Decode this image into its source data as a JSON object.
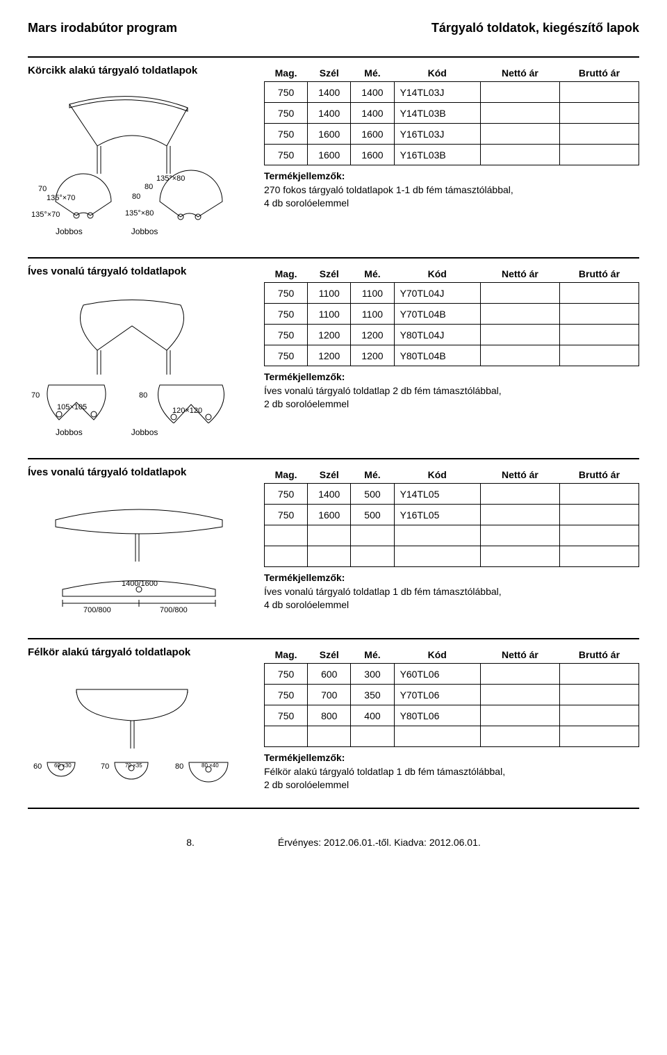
{
  "header": {
    "left": "Mars irodabútor program",
    "right": "Tárgyaló toldatok, kiegészítő lapok"
  },
  "columns": {
    "mag": "Mag.",
    "szel": "Szél",
    "me": "Mé.",
    "kod": "Kód",
    "netto": "Nettó ár",
    "brutto": "Bruttó ár"
  },
  "col_widths": {
    "mag": 60,
    "szel": 60,
    "me": 60,
    "kod": 120,
    "netto": 110,
    "brutto": 110
  },
  "features_label": "Termékjellemzők:",
  "jobbos": "Jobbos",
  "sections": [
    {
      "title": "Körcikk alakú tárgyaló toldatlapok",
      "rows": [
        [
          "750",
          "1400",
          "1400",
          "Y14TL03J",
          "",
          ""
        ],
        [
          "750",
          "1400",
          "1400",
          "Y14TL03B",
          "",
          ""
        ],
        [
          "750",
          "1600",
          "1600",
          "Y16TL03J",
          "",
          ""
        ],
        [
          "750",
          "1600",
          "1600",
          "Y16TL03B",
          "",
          ""
        ]
      ],
      "empty_rows": 0,
      "features": "270 fokos tárgyaló toldatlapok 1-1 db fém támasztólábbal,\n4 db sorolóelemmel",
      "show_jobbos": true
    },
    {
      "title": "Íves vonalú tárgyaló toldatlapok",
      "rows": [
        [
          "750",
          "1100",
          "1100",
          "Y70TL04J",
          "",
          ""
        ],
        [
          "750",
          "1100",
          "1100",
          "Y70TL04B",
          "",
          ""
        ],
        [
          "750",
          "1200",
          "1200",
          "Y80TL04J",
          "",
          ""
        ],
        [
          "750",
          "1200",
          "1200",
          "Y80TL04B",
          "",
          ""
        ]
      ],
      "empty_rows": 0,
      "features": "Íves vonalú tárgyaló toldatlap 2 db fém támasztólábbal,\n2 db sorolóelemmel",
      "show_jobbos": true
    },
    {
      "title": "Íves vonalú tárgyaló toldatlapok",
      "rows": [
        [
          "750",
          "1400",
          "500",
          "Y14TL05",
          "",
          ""
        ],
        [
          "750",
          "1600",
          "500",
          "Y16TL05",
          "",
          ""
        ]
      ],
      "empty_rows": 2,
      "features": "Íves vonalú tárgyaló toldatlap 1 db fém támasztólábbal,\n4 db sorolóelemmel",
      "show_jobbos": false
    },
    {
      "title": "Félkör alakú tárgyaló toldatlapok",
      "rows": [
        [
          "750",
          "600",
          "300",
          "Y60TL06",
          "",
          ""
        ],
        [
          "750",
          "700",
          "350",
          "Y70TL06",
          "",
          ""
        ],
        [
          "750",
          "800",
          "400",
          "Y80TL06",
          "",
          ""
        ]
      ],
      "empty_rows": 1,
      "features": "Félkör alakú tárgyaló toldatlap 1 db fém támasztólábbal,\n2 db sorolóelemmel",
      "show_jobbos": false
    }
  ],
  "diagrams": {
    "s0_dims": {
      "d70_label": "70",
      "d135x70": "135°×70",
      "d80": "80",
      "d135x80": "135°×80"
    },
    "s1_dims": {
      "d70": "70",
      "d105": "105×105",
      "d80": "80",
      "d120": "120×120"
    },
    "s2_dims": {
      "wlabel": "1400/1600",
      "half": "700/800"
    },
    "s3_dims": {
      "d60": "60",
      "d70": "70",
      "d80": "80",
      "r30": "60\n×30",
      "r35": "70\n×35",
      "r40": "80\n×40"
    }
  },
  "footer": {
    "page": "8.",
    "validity": "Érvényes: 2012.06.01.-től. Kiadva: 2012.06.01."
  },
  "colors": {
    "line": "#000000",
    "bg": "#ffffff",
    "text": "#000000"
  }
}
